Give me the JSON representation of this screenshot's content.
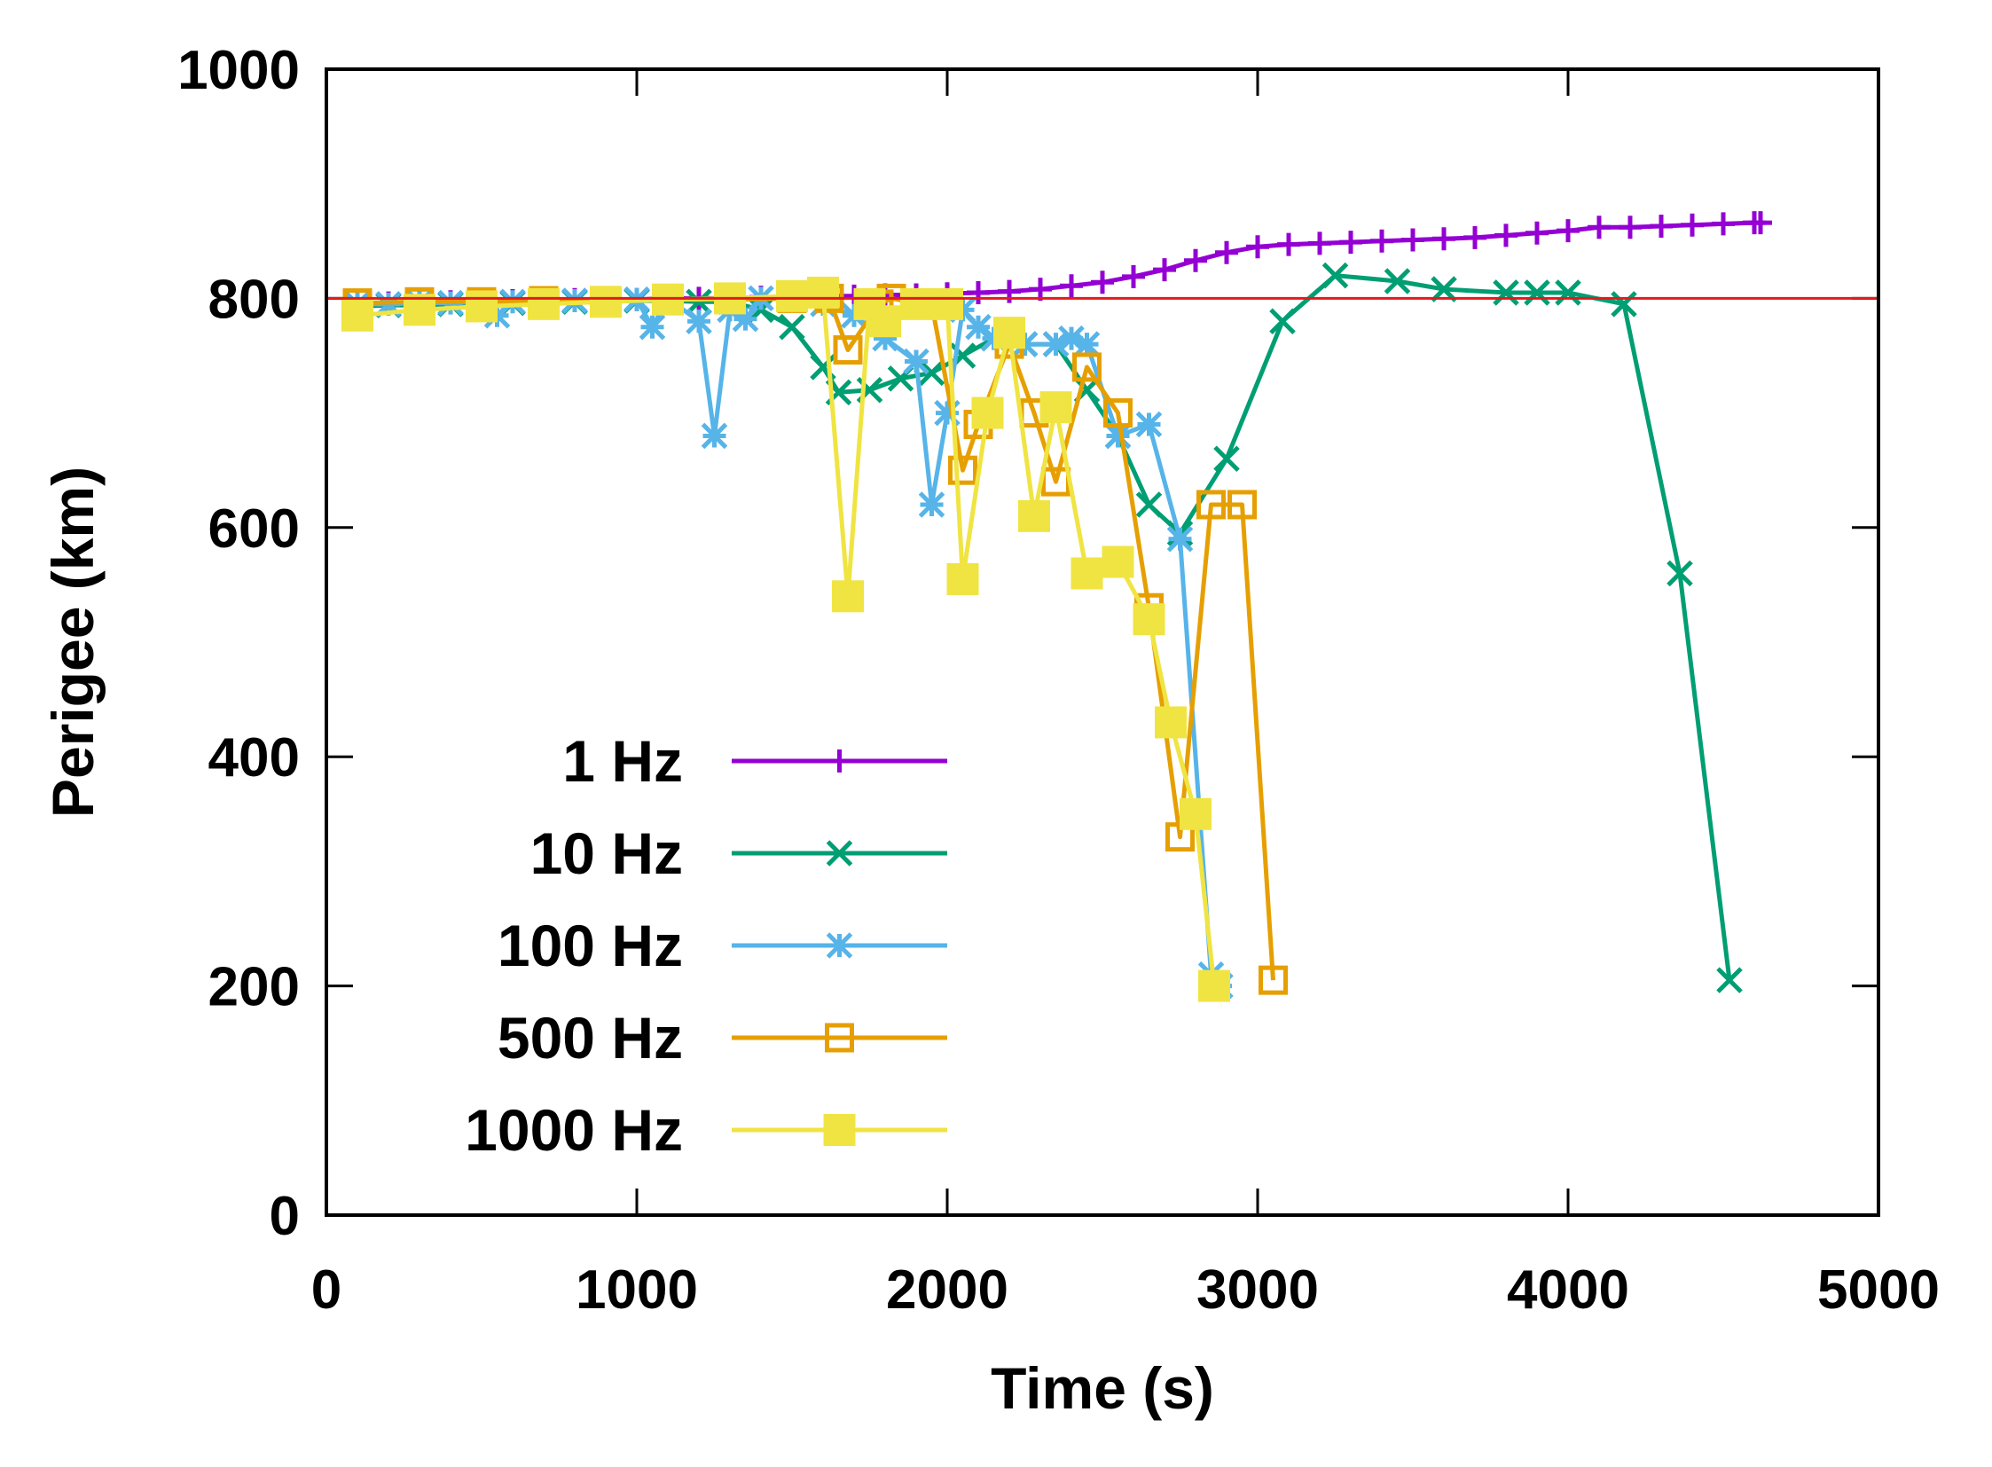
{
  "chart_data": {
    "type": "line",
    "title": "",
    "xlabel": "Time (s)",
    "ylabel": "Perigee (km)",
    "xlim": [
      0,
      5000
    ],
    "ylim": [
      0,
      1000
    ],
    "xticks": [
      0,
      1000,
      2000,
      3000,
      4000,
      5000
    ],
    "yticks": [
      0,
      200,
      400,
      600,
      800,
      1000
    ],
    "legend_position": "lower-left",
    "reference_line": {
      "y": 800,
      "color": "#e41a1c"
    },
    "series": [
      {
        "name": "1 Hz",
        "color": "#9400d3",
        "marker": "plus",
        "x": [
          100,
          200,
          300,
          400,
          500,
          600,
          700,
          800,
          900,
          1000,
          1100,
          1200,
          1300,
          1400,
          1500,
          1600,
          1700,
          1800,
          1900,
          2000,
          2100,
          2200,
          2300,
          2400,
          2500,
          2600,
          2700,
          2800,
          2900,
          3000,
          3100,
          3200,
          3300,
          3400,
          3500,
          3600,
          3700,
          3800,
          3900,
          4000,
          4100,
          4200,
          4300,
          4400,
          4500,
          4600,
          4620
        ],
        "y": [
          796,
          796,
          797,
          797,
          798,
          798,
          798,
          799,
          799,
          799,
          800,
          800,
          800,
          801,
          801,
          802,
          802,
          803,
          803,
          804,
          805,
          806,
          808,
          811,
          814,
          819,
          825,
          833,
          840,
          845,
          847,
          848,
          849,
          850,
          851,
          852,
          853,
          855,
          857,
          859,
          862,
          862,
          863,
          864,
          865,
          866,
          866
        ]
      },
      {
        "name": "10 Hz",
        "color": "#009e73",
        "marker": "x",
        "x": [
          100,
          200,
          300,
          400,
          500,
          600,
          700,
          800,
          900,
          1000,
          1100,
          1200,
          1300,
          1400,
          1500,
          1600,
          1650,
          1750,
          1850,
          1950,
          2050,
          2150,
          2250,
          2350,
          2450,
          2550,
          2650,
          2750,
          2900,
          3080,
          3250,
          3450,
          3600,
          3800,
          3900,
          4000,
          4180,
          4360,
          4520
        ],
        "y": [
          793,
          794,
          794,
          795,
          795,
          796,
          796,
          797,
          797,
          798,
          798,
          797,
          797,
          790,
          775,
          740,
          718,
          720,
          730,
          735,
          750,
          765,
          760,
          760,
          720,
          680,
          620,
          595,
          660,
          780,
          820,
          815,
          808,
          805,
          805,
          805,
          795,
          560,
          205
        ]
      },
      {
        "name": "100 Hz",
        "color": "#56b4e9",
        "marker": "star",
        "x": [
          100,
          200,
          300,
          400,
          500,
          550,
          600,
          700,
          800,
          900,
          1000,
          1050,
          1100,
          1200,
          1250,
          1300,
          1350,
          1400,
          1500,
          1600,
          1700,
          1800,
          1900,
          1950,
          2000,
          2050,
          2100,
          2150,
          2250,
          2350,
          2400,
          2450,
          2550,
          2650,
          2750,
          2850,
          2880
        ],
        "y": [
          795,
          795,
          796,
          796,
          797,
          785,
          797,
          798,
          798,
          799,
          799,
          775,
          800,
          780,
          680,
          790,
          782,
          800,
          800,
          795,
          785,
          765,
          745,
          620,
          700,
          790,
          775,
          765,
          760,
          760,
          765,
          760,
          680,
          690,
          590,
          210,
          200
        ]
      },
      {
        "name": "500 Hz",
        "color": "#e69f00",
        "marker": "square-open",
        "x": [
          100,
          300,
          500,
          700,
          900,
          1100,
          1300,
          1500,
          1620,
          1680,
          1780,
          1820,
          1900,
          1950,
          2050,
          2100,
          2200,
          2280,
          2350,
          2450,
          2550,
          2650,
          2750,
          2850,
          2950,
          3050
        ],
        "y": [
          796,
          797,
          797,
          798,
          798,
          799,
          799,
          800,
          800,
          755,
          795,
          800,
          796,
          795,
          650,
          690,
          760,
          700,
          640,
          740,
          700,
          530,
          330,
          620,
          620,
          205
        ]
      },
      {
        "name": "1000 Hz",
        "color": "#f0e442",
        "marker": "square-filled",
        "x": [
          100,
          300,
          500,
          700,
          900,
          1100,
          1300,
          1500,
          1600,
          1680,
          1750,
          1800,
          1900,
          2000,
          2050,
          2130,
          2200,
          2280,
          2350,
          2450,
          2550,
          2650,
          2720,
          2800,
          2860
        ],
        "y": [
          785,
          790,
          793,
          795,
          797,
          799,
          800,
          802,
          805,
          540,
          795,
          780,
          795,
          795,
          555,
          700,
          770,
          610,
          705,
          560,
          570,
          520,
          430,
          350,
          200
        ]
      }
    ]
  }
}
